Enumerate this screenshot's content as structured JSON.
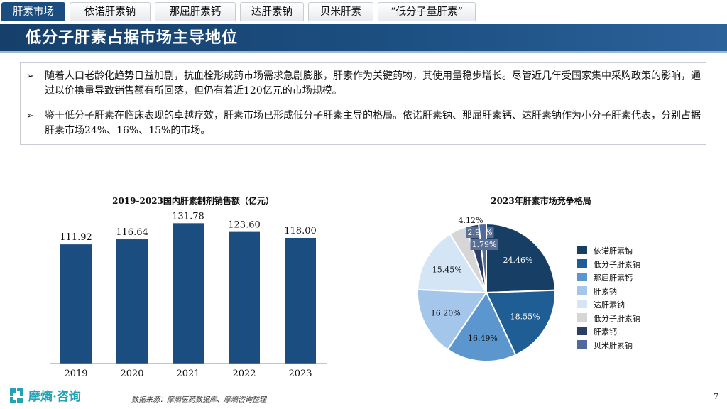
{
  "tabs": [
    {
      "label": "肝素市场",
      "active": true
    },
    {
      "label": "依诺肝素钠",
      "active": false
    },
    {
      "label": "那屈肝素钙",
      "active": false
    },
    {
      "label": "达肝素钠",
      "active": false
    },
    {
      "label": "贝米肝素",
      "active": false
    },
    {
      "label": "“低分子量肝素”",
      "active": false
    }
  ],
  "header": {
    "title": "低分子肝素占据市场主导地位"
  },
  "bullets": [
    "随着人口老龄化趋势日益加剧，抗血栓形成药市场需求急剧膨胀，肝素作为关键药物，其使用量稳步增长。尽管近几年受国家集中采购政策的影响，通过以价换量导致销售额有所回落，但仍有着近120亿元的市场规模。",
    "鉴于低分子肝素在临床表现的卓越疗效，肝素市场已形成低分子肝素主导的格局。依诺肝素钠、那屈肝素钙、达肝素钠作为小分子肝素代表，分别占据肝素市场24%、16%、15%的市场。"
  ],
  "chart_data": [
    {
      "type": "bar",
      "title": "2019-2023国内肝素制剂销售额（亿元）",
      "categories": [
        "2019",
        "2020",
        "2021",
        "2022",
        "2023"
      ],
      "values": [
        111.92,
        116.64,
        131.78,
        123.6,
        118.0
      ],
      "value_labels": [
        "111.92",
        "116.64",
        "131.78",
        "123.60",
        "118.00"
      ],
      "color": "#1b4d80",
      "ylim": [
        0,
        140
      ],
      "grid": false
    },
    {
      "type": "pie",
      "title": "2023年肝素市场竞争格局",
      "legend_position": "right",
      "slices": [
        {
          "name": "依诺肝素钠",
          "value": 24.46,
          "label": "24.46%",
          "color": "#173f66"
        },
        {
          "name": "低分子肝素钠",
          "value": 18.55,
          "label": "18.55%",
          "color": "#1e5e94"
        },
        {
          "name": "那屈肝素钙",
          "value": 16.49,
          "label": "16.49%",
          "color": "#5b96cf"
        },
        {
          "name": "肝素钠",
          "value": 16.2,
          "label": "16.20%",
          "color": "#a4c6ea"
        },
        {
          "name": "达肝素钠",
          "value": 15.45,
          "label": "15.45%",
          "color": "#d4e5f6"
        },
        {
          "name": "低分子肝素钠",
          "value": 4.12,
          "label": "4.12%",
          "color": "#d6d6d6"
        },
        {
          "name": "肝素钙",
          "value": 2.95,
          "label": "2.95%",
          "color": "#2c3e63"
        },
        {
          "name": "贝米肝素钠",
          "value": 1.79,
          "label": "1.79%",
          "color": "#506b99"
        }
      ]
    }
  ],
  "footer": {
    "logo_text": "摩熵·咨询",
    "source": "数据来源：摩熵医药数据库、摩熵咨询整理",
    "page": "7"
  },
  "colors": {
    "primary": "#1b4d80",
    "accent": "#22a3b8"
  }
}
